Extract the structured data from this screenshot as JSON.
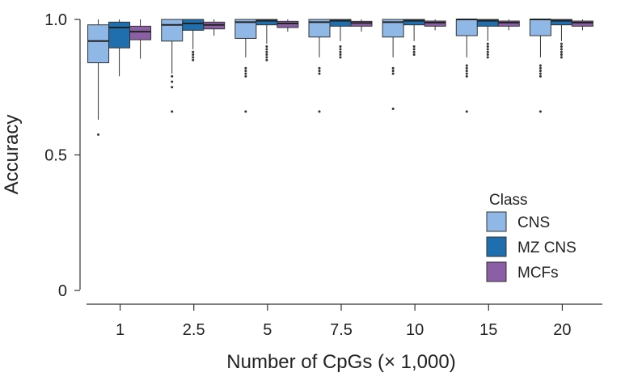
{
  "chart_data": {
    "type": "boxplot",
    "ylabel": "Accuracy",
    "xlabel": "Number of CpGs (× 1,000)",
    "ylim": [
      0,
      1.0
    ],
    "yticks": [
      0,
      0.5,
      1.0
    ],
    "ytick_labels": [
      "0",
      "0.5",
      "1.0"
    ],
    "categories": [
      "1",
      "2.5",
      "5",
      "7.5",
      "10",
      "15",
      "20"
    ],
    "legend": {
      "title": "Class",
      "position": "bottom-right"
    },
    "series": [
      {
        "name": "CNS",
        "color": "#8fb8e6",
        "boxes": [
          {
            "whislo": 0.63,
            "q1": 0.84,
            "med": 0.92,
            "q3": 0.98,
            "whishi": 1.0,
            "fliers": [
              0.575
            ]
          },
          {
            "whislo": 0.8,
            "q1": 0.92,
            "med": 0.98,
            "q3": 1.0,
            "whishi": 1.0,
            "fliers": [
              0.79,
              0.77,
              0.75,
              0.66
            ]
          },
          {
            "whislo": 0.86,
            "q1": 0.93,
            "med": 0.99,
            "q3": 1.0,
            "whishi": 1.0,
            "fliers": [
              0.82,
              0.81,
              0.8,
              0.79,
              0.66
            ]
          },
          {
            "whislo": 0.86,
            "q1": 0.935,
            "med": 0.99,
            "q3": 1.0,
            "whishi": 1.0,
            "fliers": [
              0.82,
              0.81,
              0.8,
              0.66
            ]
          },
          {
            "whislo": 0.86,
            "q1": 0.935,
            "med": 0.99,
            "q3": 1.0,
            "whishi": 1.0,
            "fliers": [
              0.82,
              0.81,
              0.8,
              0.67
            ]
          },
          {
            "whislo": 0.86,
            "q1": 0.94,
            "med": 1.0,
            "q3": 1.0,
            "whishi": 1.0,
            "fliers": [
              0.83,
              0.82,
              0.81,
              0.8,
              0.79,
              0.66
            ]
          },
          {
            "whislo": 0.86,
            "q1": 0.94,
            "med": 1.0,
            "q3": 1.0,
            "whishi": 1.0,
            "fliers": [
              0.83,
              0.82,
              0.81,
              0.8,
              0.79,
              0.66
            ]
          }
        ]
      },
      {
        "name": "MZ CNS",
        "color": "#1f6fae",
        "boxes": [
          {
            "whislo": 0.79,
            "q1": 0.895,
            "med": 0.97,
            "q3": 0.99,
            "whishi": 1.0,
            "fliers": []
          },
          {
            "whislo": 0.89,
            "q1": 0.96,
            "med": 0.985,
            "q3": 1.0,
            "whishi": 1.0,
            "fliers": [
              0.88,
              0.87,
              0.86,
              0.85
            ]
          },
          {
            "whislo": 0.91,
            "q1": 0.98,
            "med": 0.995,
            "q3": 1.0,
            "whishi": 1.0,
            "fliers": [
              0.9,
              0.89,
              0.88,
              0.87,
              0.86,
              0.85
            ]
          },
          {
            "whislo": 0.92,
            "q1": 0.975,
            "med": 0.995,
            "q3": 1.0,
            "whishi": 1.0,
            "fliers": [
              0.9,
              0.89,
              0.88,
              0.87,
              0.86
            ]
          },
          {
            "whislo": 0.92,
            "q1": 0.98,
            "med": 0.995,
            "q3": 1.0,
            "whishi": 1.0,
            "fliers": [
              0.9,
              0.89,
              0.88,
              0.87
            ]
          },
          {
            "whislo": 0.92,
            "q1": 0.975,
            "med": 0.995,
            "q3": 1.0,
            "whishi": 1.0,
            "fliers": [
              0.91,
              0.9,
              0.89,
              0.88,
              0.87,
              0.86
            ]
          },
          {
            "whislo": 0.92,
            "q1": 0.98,
            "med": 0.995,
            "q3": 1.0,
            "whishi": 1.0,
            "fliers": [
              0.91,
              0.9,
              0.89,
              0.88,
              0.87,
              0.86
            ]
          }
        ]
      },
      {
        "name": "MCFs",
        "color": "#8a5fa6",
        "boxes": [
          {
            "whislo": 0.855,
            "q1": 0.925,
            "med": 0.955,
            "q3": 0.975,
            "whishi": 1.0,
            "fliers": []
          },
          {
            "whislo": 0.94,
            "q1": 0.965,
            "med": 0.98,
            "q3": 0.99,
            "whishi": 1.0,
            "fliers": []
          },
          {
            "whislo": 0.955,
            "q1": 0.97,
            "med": 0.985,
            "q3": 0.993,
            "whishi": 1.0,
            "fliers": []
          },
          {
            "whislo": 0.955,
            "q1": 0.975,
            "med": 0.987,
            "q3": 0.993,
            "whishi": 1.0,
            "fliers": []
          },
          {
            "whislo": 0.96,
            "q1": 0.975,
            "med": 0.988,
            "q3": 0.994,
            "whishi": 1.0,
            "fliers": []
          },
          {
            "whislo": 0.96,
            "q1": 0.975,
            "med": 0.988,
            "q3": 0.994,
            "whishi": 1.0,
            "fliers": []
          },
          {
            "whislo": 0.96,
            "q1": 0.975,
            "med": 0.988,
            "q3": 0.994,
            "whishi": 1.0,
            "fliers": []
          }
        ]
      }
    ]
  }
}
